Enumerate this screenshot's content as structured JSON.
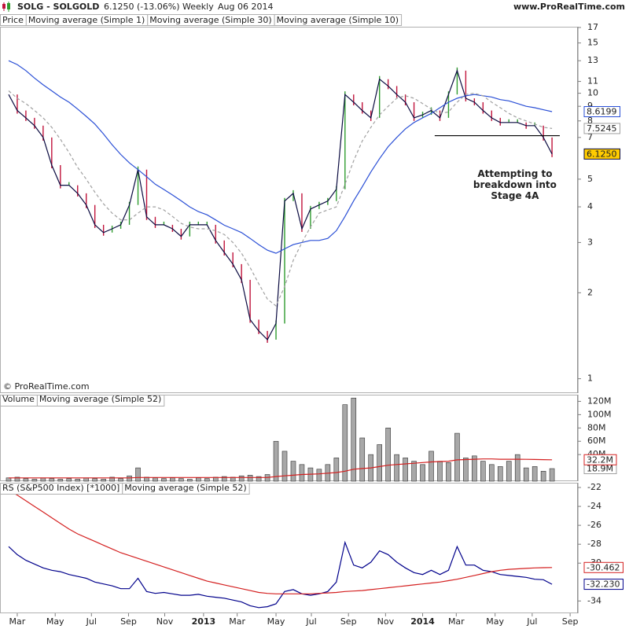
{
  "header": {
    "symbol": "SOLG - SOLGOLD",
    "quote": "6.1250 (-13.06%)",
    "period": "Weekly",
    "date": "Aug 06 2014",
    "site": "www.ProRealTime.com"
  },
  "chart_data": [
    {
      "type": "line",
      "label": "Price",
      "log": true,
      "watermark": "© ProRealTime.com",
      "xlim": [
        -1,
        66
      ],
      "ylim": [
        0.89,
        17.1
      ],
      "yticks": [
        17,
        15,
        13,
        11,
        10,
        9,
        8,
        7,
        5,
        4,
        3,
        2,
        1
      ],
      "series": [
        {
          "name": "Moving average (Simple 1)",
          "color": "#0a0a40",
          "up_color": "#2e9b2e",
          "down_color": "#c0143c",
          "value_label": "6.1250",
          "label_fill": "#ffcc00",
          "values": [
            9.9,
            8.7,
            8.2,
            7.7,
            7.0,
            5.6,
            4.76,
            4.76,
            4.46,
            4.06,
            3.46,
            3.25,
            3.35,
            3.46,
            4.06,
            5.4,
            3.69,
            3.46,
            3.46,
            3.35,
            3.15,
            3.46,
            3.46,
            3.46,
            3.05,
            2.77,
            2.52,
            2.22,
            1.61,
            1.47,
            1.37,
            1.56,
            4.19,
            4.46,
            3.35,
            3.93,
            4.06,
            4.19,
            4.61,
            9.9,
            9.3,
            8.7,
            8.2,
            11.2,
            10.6,
            9.9,
            9.3,
            8.2,
            8.4,
            8.7,
            8.2,
            9.9,
            12.0,
            9.6,
            9.3,
            8.7,
            8.2,
            7.9,
            7.9,
            7.9,
            7.7,
            7.7,
            7.0,
            6.125
          ]
        },
        {
          "name": "Moving average (Simple 30)",
          "color": "#2a4fd6",
          "value_label": "8.6199",
          "label_fill": "#ffffff",
          "values": [
            13.0,
            12.6,
            12.0,
            11.3,
            10.7,
            10.2,
            9.7,
            9.3,
            8.8,
            8.3,
            7.8,
            7.2,
            6.6,
            6.1,
            5.7,
            5.4,
            5.1,
            4.8,
            4.6,
            4.4,
            4.2,
            4.0,
            3.85,
            3.75,
            3.6,
            3.45,
            3.35,
            3.25,
            3.1,
            2.95,
            2.82,
            2.75,
            2.85,
            2.95,
            3.0,
            3.05,
            3.05,
            3.1,
            3.3,
            3.7,
            4.2,
            4.7,
            5.3,
            5.9,
            6.5,
            7.0,
            7.5,
            7.9,
            8.2,
            8.5,
            8.9,
            9.3,
            9.6,
            9.8,
            9.9,
            9.8,
            9.7,
            9.5,
            9.4,
            9.2,
            9.0,
            8.9,
            8.75,
            8.6199
          ]
        },
        {
          "name": "Moving average (Simple 10)",
          "color": "#a0a0a0",
          "dashed": true,
          "value_label": "7.5245",
          "label_fill": "#ffffff",
          "values": [
            10.2,
            9.6,
            9.2,
            8.7,
            8.2,
            7.6,
            6.9,
            6.2,
            5.5,
            5.0,
            4.5,
            4.1,
            3.8,
            3.6,
            3.6,
            3.8,
            4.0,
            4.0,
            3.9,
            3.7,
            3.5,
            3.4,
            3.35,
            3.35,
            3.3,
            3.2,
            3.0,
            2.75,
            2.45,
            2.15,
            1.9,
            1.8,
            2.1,
            2.6,
            3.0,
            3.4,
            3.8,
            3.9,
            4.0,
            4.8,
            5.8,
            6.8,
            7.6,
            8.4,
            9.0,
            9.6,
            9.8,
            9.6,
            9.2,
            8.8,
            8.5,
            8.6,
            9.3,
            9.9,
            10.0,
            9.8,
            9.3,
            8.9,
            8.5,
            8.2,
            8.0,
            7.8,
            7.6,
            7.5245
          ]
        }
      ],
      "hlines": [
        {
          "value": 7.1,
          "from": 49.4,
          "to": 63.9,
          "color": "#000000"
        }
      ],
      "annotation": {
        "lines": [
          "Attempting to",
          "breakdown into",
          "Stage 4A"
        ],
        "x": 58.7,
        "y": 5.2
      }
    },
    {
      "type": "bar",
      "xlim": [
        -1,
        66
      ],
      "ylim": [
        0,
        130
      ],
      "yticks": [
        {
          "value": 120,
          "label": "120M"
        },
        {
          "value": 100,
          "label": "100M"
        },
        {
          "value": 80,
          "label": "80M"
        },
        {
          "value": 60,
          "label": "60M"
        },
        {
          "value": 40,
          "label": "40M"
        }
      ],
      "series": [
        {
          "name": "Volume",
          "type": "bar",
          "color": "#a8a8a8",
          "value_label": "18.9M",
          "label_fill": "#ffffff",
          "values": [
            5,
            6,
            4,
            3,
            5,
            4,
            3,
            4,
            3,
            5,
            4,
            3,
            6,
            4,
            8,
            20,
            6,
            5,
            4,
            5,
            4,
            3,
            5,
            4,
            6,
            7,
            6,
            8,
            9,
            7,
            10,
            60,
            45,
            30,
            25,
            20,
            18,
            25,
            35,
            115,
            125,
            65,
            40,
            55,
            80,
            40,
            35,
            30,
            25,
            45,
            30,
            28,
            72,
            35,
            38,
            30,
            25,
            22,
            30,
            40,
            20,
            22,
            15,
            18.9
          ]
        },
        {
          "name": "Moving average (Simple 52)",
          "type": "line",
          "color": "#d42020",
          "value_label": "32.2M",
          "label_fill": "#ffffff",
          "values": [
            5,
            5,
            5,
            5,
            5,
            5,
            5,
            5,
            5,
            5,
            5,
            5,
            5,
            5,
            5,
            5.5,
            5.5,
            5.5,
            5.5,
            5.5,
            5.5,
            5.5,
            5.5,
            5.5,
            5.5,
            5.5,
            5.5,
            5.5,
            5.5,
            5.5,
            5.5,
            7,
            8,
            9,
            10,
            10.5,
            11,
            12,
            13,
            15,
            18,
            19,
            20,
            22,
            24,
            25,
            26,
            27,
            28,
            29,
            29.5,
            30,
            32,
            32.5,
            33,
            33.5,
            33.5,
            33,
            33,
            33,
            32.8,
            32.6,
            32.4,
            32.2
          ]
        }
      ]
    },
    {
      "type": "line",
      "xlim": [
        -1,
        66
      ],
      "ylim": [
        -35.3,
        -21.5
      ],
      "yticks": [
        -22,
        -24,
        -26,
        -28,
        -30,
        -34
      ],
      "xticks": [
        {
          "value": 1.0,
          "label": "Mar"
        },
        {
          "value": 5.4,
          "label": "May"
        },
        {
          "value": 9.6,
          "label": "Jul"
        },
        {
          "value": 13.9,
          "label": "Sep"
        },
        {
          "value": 18.1,
          "label": "Nov"
        },
        {
          "value": 22.6,
          "label": "2013"
        },
        {
          "value": 26.5,
          "label": "Mar"
        },
        {
          "value": 31.0,
          "label": "May"
        },
        {
          "value": 35.1,
          "label": "Jul"
        },
        {
          "value": 39.4,
          "label": "Sep"
        },
        {
          "value": 43.7,
          "label": "Nov"
        },
        {
          "value": 48.0,
          "label": "2014"
        },
        {
          "value": 51.9,
          "label": "Mar"
        },
        {
          "value": 56.4,
          "label": "May"
        },
        {
          "value": 60.7,
          "label": "Jul"
        },
        {
          "value": 65.1,
          "label": "Sep"
        }
      ],
      "series": [
        {
          "name": "RS (S&P500 Index) [*1000]",
          "color": "#00008b",
          "value_label": "-32.230",
          "label_fill": "#ffffff",
          "values": [
            -28.25,
            -29.1,
            -29.7,
            -30.1,
            -30.5,
            -30.75,
            -30.9,
            -31.2,
            -31.4,
            -31.6,
            -32.0,
            -32.2,
            -32.4,
            -32.7,
            -32.7,
            -31.6,
            -33.0,
            -33.2,
            -33.1,
            -33.25,
            -33.4,
            -33.4,
            -33.3,
            -33.5,
            -33.6,
            -33.7,
            -33.9,
            -34.1,
            -34.5,
            -34.7,
            -34.6,
            -34.3,
            -33.0,
            -32.8,
            -33.25,
            -33.4,
            -33.25,
            -33.0,
            -32.0,
            -27.8,
            -30.2,
            -30.5,
            -29.9,
            -28.7,
            -29.1,
            -29.9,
            -30.5,
            -31.0,
            -31.2,
            -30.75,
            -31.2,
            -30.75,
            -28.25,
            -30.2,
            -30.2,
            -30.75,
            -30.9,
            -31.2,
            -31.3,
            -31.4,
            -31.5,
            -31.7,
            -31.75,
            -32.23
          ]
        },
        {
          "name": "Moving average (Simple 52)",
          "color": "#d42020",
          "value_label": "-30.462",
          "label_fill": "#ffffff",
          "values": [
            -22.3,
            -22.8,
            -23.4,
            -24.0,
            -24.6,
            -25.2,
            -25.8,
            -26.4,
            -26.9,
            -27.3,
            -27.7,
            -28.1,
            -28.5,
            -28.9,
            -29.2,
            -29.5,
            -29.8,
            -30.1,
            -30.4,
            -30.7,
            -31.0,
            -31.3,
            -31.6,
            -31.9,
            -32.1,
            -32.3,
            -32.5,
            -32.7,
            -32.9,
            -33.1,
            -33.2,
            -33.25,
            -33.25,
            -33.25,
            -33.25,
            -33.25,
            -33.2,
            -33.15,
            -33.1,
            -33.0,
            -32.95,
            -32.9,
            -32.8,
            -32.7,
            -32.6,
            -32.5,
            -32.4,
            -32.3,
            -32.2,
            -32.1,
            -32.0,
            -31.85,
            -31.7,
            -31.5,
            -31.3,
            -31.1,
            -30.9,
            -30.75,
            -30.65,
            -30.6,
            -30.55,
            -30.5,
            -30.48,
            -30.462
          ]
        }
      ]
    }
  ]
}
